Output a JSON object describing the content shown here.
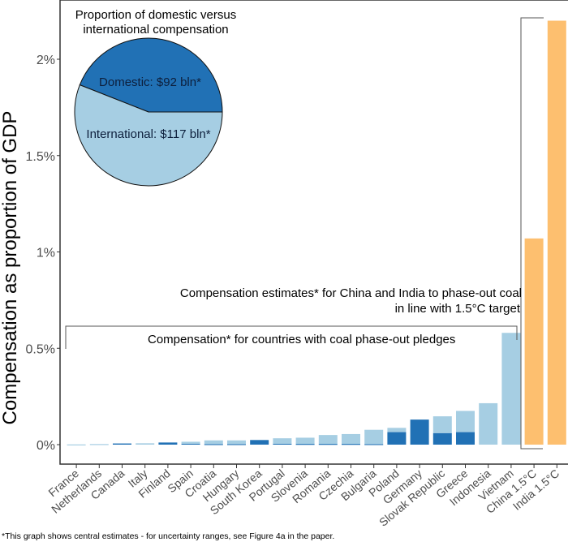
{
  "chart_data": {
    "type": "bar",
    "ylabel": "Compensation as proportion of GDP",
    "ylim": [
      0,
      2.3
    ],
    "yticks": [
      0,
      0.5,
      1,
      1.5,
      2
    ],
    "ytick_labels": [
      "0%",
      "0.5%",
      "1%",
      "1.5%",
      "2%"
    ],
    "categories": [
      "France",
      "Netherlands",
      "Canada",
      "Italy",
      "Finland",
      "Spain",
      "Croatia",
      "Hungary",
      "South Korea",
      "Portugal",
      "Slovenia",
      "Romania",
      "Czechia",
      "Bulgaria",
      "Poland",
      "Germany",
      "Slovak Republic",
      "Greece",
      "Indonesia",
      "Vietnam",
      "China 1.5°C",
      "India 1.5°C"
    ],
    "series": [
      {
        "name": "Domestic",
        "color": "#2171b5",
        "values": [
          0,
          0,
          0.006,
          0,
          0.011,
          0.005,
          0.003,
          0.003,
          0.024,
          0.005,
          0.004,
          0.004,
          0.004,
          0.003,
          0.065,
          0.13,
          0.06,
          0.065,
          0,
          0,
          0,
          0
        ]
      },
      {
        "name": "International",
        "color": "#a6cee3",
        "values": [
          0.001,
          0.003,
          0,
          0.007,
          0,
          0.01,
          0.019,
          0.019,
          0,
          0.028,
          0.032,
          0.046,
          0.051,
          0.074,
          0.022,
          0,
          0.087,
          0.11,
          0.215,
          0.58,
          0,
          0
        ]
      },
      {
        "name": "1.5°C target",
        "color": "#fdbf6f",
        "values": [
          0,
          0,
          0,
          0,
          0,
          0,
          0,
          0,
          0,
          0,
          0,
          0,
          0,
          0,
          0,
          0,
          0,
          0,
          0,
          0,
          1.07,
          2.2
        ]
      }
    ],
    "annotations": {
      "pledges": "Compensation* for countries with coal phase-out pledges",
      "china_india_line1": "Compensation estimates* for China and India to phase-out coal",
      "china_india_line2": "in line with 1.5°C target"
    },
    "inset_pie": {
      "type": "pie",
      "title_line1": "Proportion of domestic versus",
      "title_line2": "international compensation",
      "slices": [
        {
          "label": "Domestic: $92 bln*",
          "value": 92,
          "color": "#2171b5"
        },
        {
          "label": "International: $117 bln*",
          "value": 117,
          "color": "#a6cee3"
        }
      ]
    },
    "footnote": "*This graph shows central estimates - for uncertainty ranges, see Figure 4a in the paper."
  }
}
